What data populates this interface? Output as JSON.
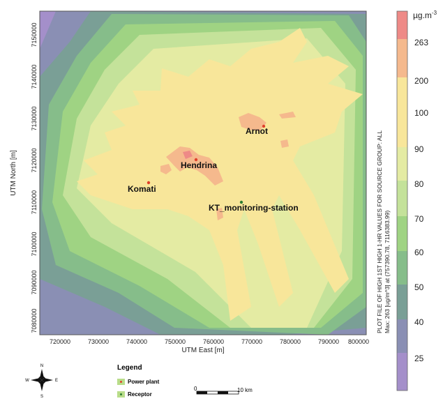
{
  "map": {
    "x_ticks": [
      "720000",
      "730000",
      "740000",
      "750000",
      "760000",
      "770000",
      "780000",
      "790000",
      "800000"
    ],
    "y_ticks": [
      "7150000",
      "7140000",
      "7130000",
      "7120000",
      "7110000",
      "7100000",
      "7090000",
      "7080000"
    ],
    "x_label": "UTM East [m]",
    "y_label": "UTM North [m]",
    "places": [
      {
        "name": "Arnot",
        "type": "Power plant"
      },
      {
        "name": "Hendrina",
        "type": "Power plant"
      },
      {
        "name": "Komati",
        "type": "Power plant"
      },
      {
        "name": "KT_monitoring-station",
        "type": "Receptor"
      }
    ]
  },
  "colorbar": {
    "unit": "µg.m",
    "unit_exp": "-3",
    "labels": [
      "263",
      "200",
      "100",
      "90",
      "80",
      "70",
      "60",
      "50",
      "40",
      "25"
    ],
    "colors": {
      "above_263": "#ee8a87",
      "200_263": "#f5b98d",
      "100_200": "#f8e69a",
      "90_100": "#e4eba3",
      "80_90": "#c4e29a",
      "70_80": "#9fd383",
      "60_70": "#86bd8a",
      "50_60": "#7a9f96",
      "40_50": "#8a8fb4",
      "25_40": "#a48fca"
    }
  },
  "side_text": {
    "line1": "PLOT FILE OF HIGH 1ST HIGH 1-HR VALUES FOR SOURCE GROUP: ALL",
    "line2": "Max: 263  [ug/m^3] at (757390.78, 7116383.99)"
  },
  "legend": {
    "title": "Legend",
    "power_plant": "Power plant",
    "receptor": "Receptor",
    "power_plant_color": "#e0402b",
    "receptor_color": "#3a8a3a"
  },
  "scale_bar": {
    "zero": "0",
    "distance": "10 km"
  },
  "compass": {
    "n": "N",
    "s": "S",
    "e": "E",
    "w": "W"
  }
}
